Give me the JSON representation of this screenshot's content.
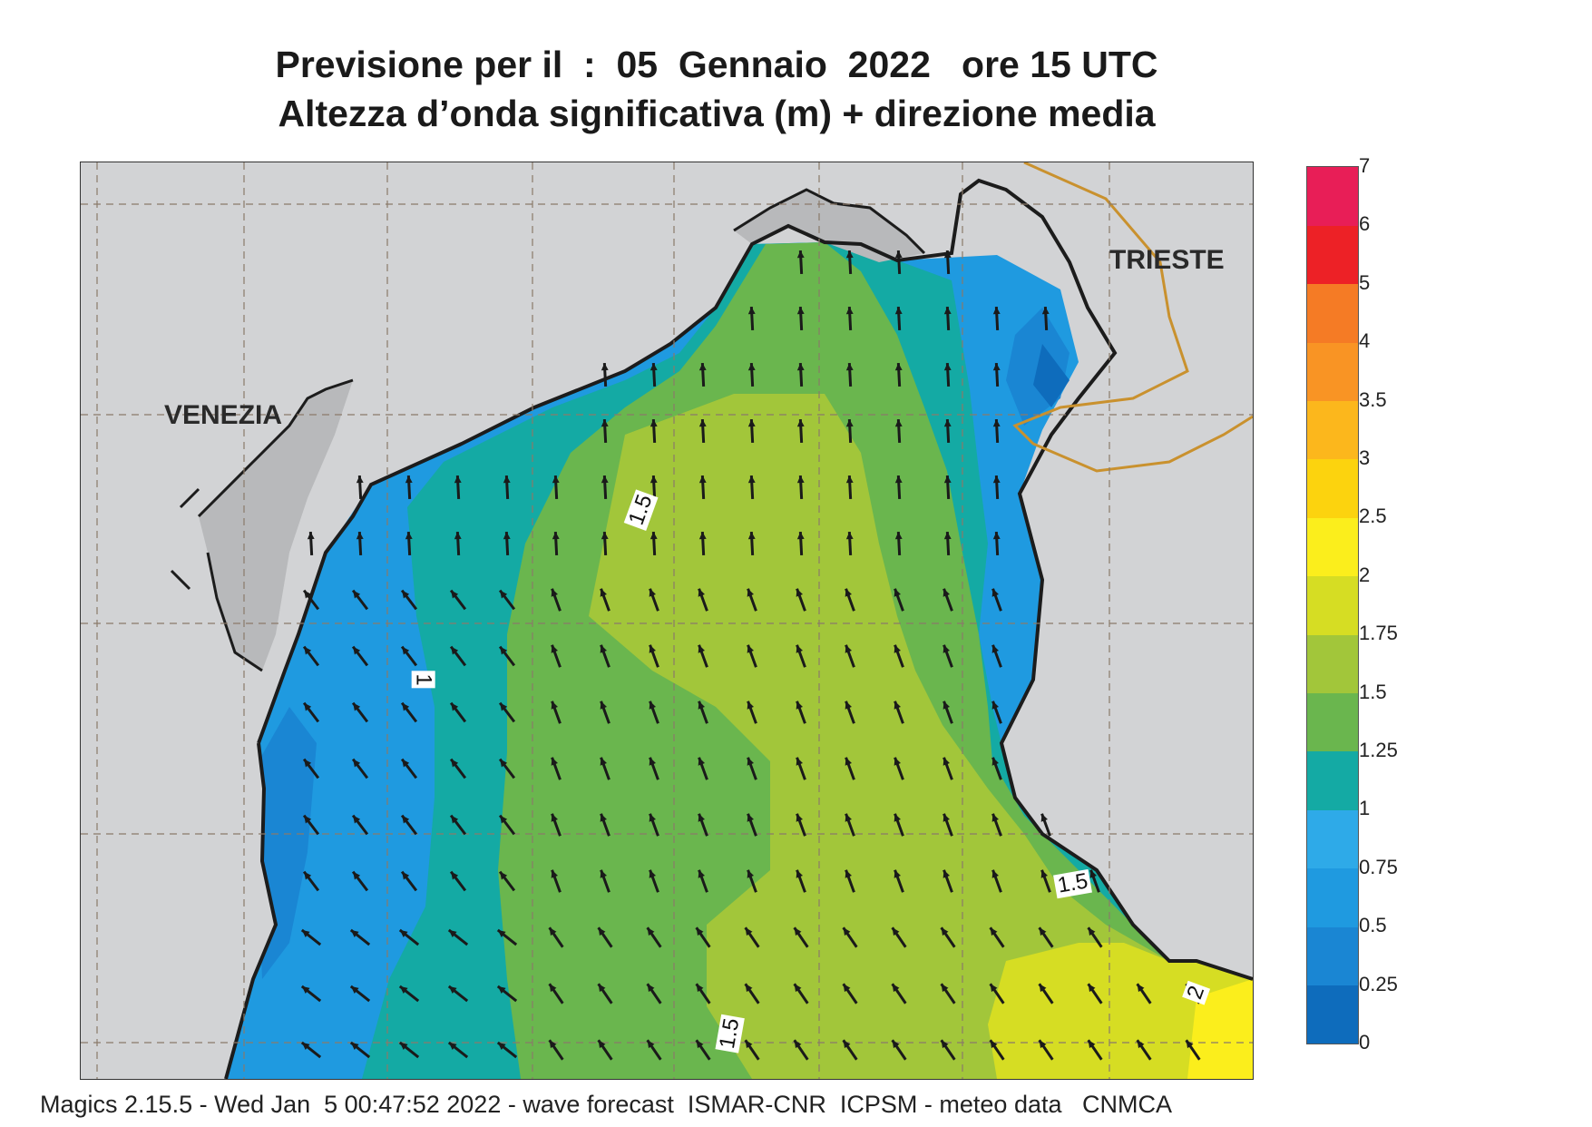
{
  "title": {
    "line1": "Previsione per il  :  05  Gennaio  2022   ore 15 UTC",
    "line2": "Altezza d’onda significativa (m) + direzione media"
  },
  "cities": [
    "VENEZIA",
    "TRIESTE"
  ],
  "contour_labels": [
    "1.5",
    "1",
    "1.5",
    "1.5",
    "2"
  ],
  "legend": {
    "levels": [
      "0",
      "0.25",
      "0.5",
      "0.75",
      "1",
      "1.25",
      "1.5",
      "1.75",
      "2",
      "2.5",
      "3",
      "3.5",
      "4",
      "5",
      "6",
      "7"
    ],
    "colors": [
      "#0e6cbc",
      "#1a86d3",
      "#1f9ae0",
      "#2eaae8",
      "#14aaa4",
      "#6ab64e",
      "#a2c63a",
      "#d6dd23",
      "#fbee1c",
      "#fcd30e",
      "#fcb71c",
      "#f99424",
      "#f57b25",
      "#ed2126",
      "#e81e57"
    ]
  },
  "map_colors": {
    "land": "#d2d3d5",
    "coast": "#1c1c1c",
    "border": "#c9912e",
    "grid": "#8a7a6a",
    "arrow": "#1a1a1a"
  },
  "footer": "Magics 2.15.5 - Wed Jan  5 00:47:52 2022 - wave forecast  ISMAR-CNR  ICPSM - meteo data   CNMCA"
}
